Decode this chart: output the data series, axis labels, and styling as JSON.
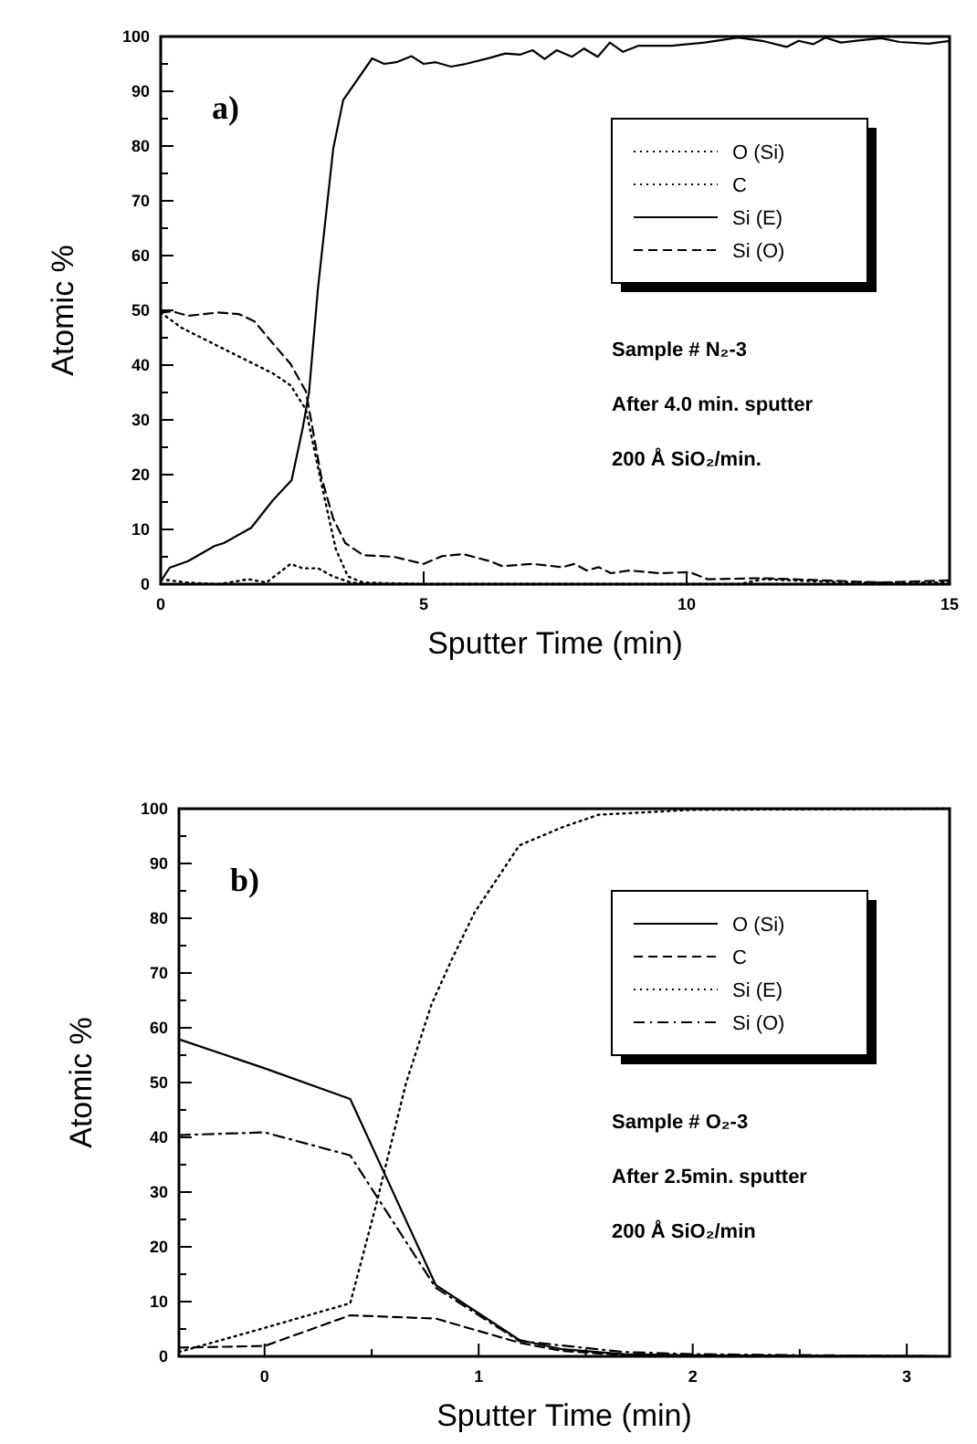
{
  "chart_data": [
    {
      "type": "line",
      "xlabel": "Sputter Time (min)",
      "ylabel": "Atomic %",
      "xlim": [
        0,
        15
      ],
      "ylim": [
        0,
        100
      ],
      "xticks": [
        0,
        5,
        10,
        15
      ],
      "yticks": [
        0,
        {
          "value": 5,
          "label": null
        },
        10,
        {
          "value": 15,
          "label": null
        },
        20,
        {
          "value": 25,
          "label": null
        },
        30,
        {
          "value": 35,
          "label": null
        },
        40,
        {
          "value": 45,
          "label": null
        },
        50,
        {
          "value": 55,
          "label": null
        },
        60,
        {
          "value": 65,
          "label": null
        },
        70,
        {
          "value": 75,
          "label": null
        },
        80,
        {
          "value": 85,
          "label": null
        },
        90,
        {
          "value": 95,
          "label": null
        },
        100
      ],
      "legend": "top right",
      "grid": false,
      "annotations": [
        "a)",
        "Sample # N₂-3",
        "After 4.0 min. sputter",
        "200 Å  SiO₂/min."
      ],
      "series": [
        {
          "name": "O (Si)",
          "color": "#000000",
          "line_style": "dotted",
          "x": [
            0,
            0.4,
            0.98,
            1.67,
            2.13,
            2.47,
            2.76,
            2.93,
            3.1,
            3.33,
            3.56,
            3.85,
            5,
            15
          ],
          "values": [
            49.6,
            46.8,
            44,
            40.7,
            38.5,
            36.3,
            31.9,
            24.1,
            16.4,
            6.4,
            1.4,
            0.3,
            0,
            0
          ]
        },
        {
          "name": "C",
          "color": "#000000",
          "line_style": "dotted",
          "x": [
            0,
            0.5,
            1.1,
            1.67,
            2.01,
            2.47,
            2.7,
            2.99,
            3.28,
            3.62,
            4,
            11,
            11.44,
            13.1,
            15
          ],
          "values": [
            0.9,
            0.3,
            0,
            0.9,
            0.3,
            3.7,
            2.9,
            2.9,
            1.4,
            0.3,
            0,
            0,
            0.9,
            0.3,
            0.3
          ]
        },
        {
          "name": "Si (E)",
          "color": "#000000",
          "line_style": "solid",
          "x": [
            0,
            0.17,
            0.52,
            1.03,
            1.2,
            1.72,
            2.13,
            2.49,
            2.7,
            2.82,
            2.99,
            3.28,
            3.47,
            4.02,
            4.25,
            4.48,
            4.77,
            5,
            5.23,
            5.52,
            5.8,
            6.26,
            6.55,
            6.84,
            7.07,
            7.3,
            7.53,
            7.82,
            8.05,
            8.31,
            8.54,
            8.79,
            9.08,
            9.71,
            10.34,
            10.98,
            11.44,
            11.9,
            12.13,
            12.41,
            12.64,
            12.93,
            13.39,
            13.7,
            14.05,
            14.6,
            15
          ],
          "values": [
            0.5,
            3,
            4.2,
            7,
            7.5,
            10.3,
            15.3,
            19,
            28.5,
            35,
            54,
            79.5,
            88.4,
            96,
            95,
            95.3,
            96.4,
            95,
            95.3,
            94.5,
            95,
            96.1,
            96.9,
            96.7,
            97.5,
            95.9,
            97.5,
            96.3,
            97.8,
            96.3,
            98.9,
            97.2,
            98.3,
            98.3,
            98.9,
            99.8,
            99.2,
            98.1,
            99.2,
            98.6,
            99.8,
            98.9,
            99.4,
            99.7,
            99,
            98.7,
            99.2
          ]
        },
        {
          "name": "Si (O)",
          "color": "#000000",
          "line_style": "dashed",
          "x": [
            0,
            0.23,
            0.52,
            1.09,
            1.49,
            1.78,
            2.13,
            2.47,
            2.76,
            3.05,
            3.28,
            3.51,
            3.85,
            4.43,
            5,
            5.34,
            5.75,
            6.26,
            6.49,
            7.07,
            7.64,
            7.87,
            8.1,
            8.33,
            8.56,
            8.91,
            9.48,
            10.06,
            10.4,
            11.44,
            12.6,
            13.7,
            15
          ],
          "values": [
            49.6,
            49.8,
            49,
            49.6,
            49.3,
            48,
            44,
            40.2,
            35.2,
            19.7,
            12,
            7.5,
            5.3,
            5,
            3.7,
            5.1,
            5.5,
            4.2,
            3.3,
            3.7,
            3.1,
            3.7,
            2.5,
            3.1,
            2,
            2.5,
            2,
            2.2,
            0.9,
            1.1,
            0.7,
            0.3,
            0.7
          ]
        }
      ]
    },
    {
      "type": "line",
      "xlabel": "Sputter Time (min)",
      "ylabel": "Atomic %",
      "xlim": [
        -0.4,
        3.2
      ],
      "ylim": [
        0,
        100
      ],
      "xticks": [
        0,
        {
          "value": 0.5,
          "label": null
        },
        1,
        {
          "value": 1.5,
          "label": null
        },
        2,
        {
          "value": 2.5,
          "label": null
        },
        3
      ],
      "yticks": [
        0,
        {
          "value": 5,
          "label": null
        },
        10,
        {
          "value": 15,
          "label": null
        },
        20,
        {
          "value": 25,
          "label": null
        },
        30,
        {
          "value": 35,
          "label": null
        },
        40,
        {
          "value": 45,
          "label": null
        },
        50,
        {
          "value": 55,
          "label": null
        },
        60,
        {
          "value": 65,
          "label": null
        },
        70,
        {
          "value": 75,
          "label": null
        },
        80,
        {
          "value": 85,
          "label": null
        },
        90,
        {
          "value": 95,
          "label": null
        },
        100
      ],
      "legend": "top right",
      "grid": false,
      "annotations": [
        "b)",
        "Sample # O₂-3",
        "After 2.5min. sputter",
        "200 Å  SiO₂/min"
      ],
      "series": [
        {
          "name": "O (Si)",
          "color": "#000000",
          "line_style": "solid",
          "x": [
            -0.4,
            0,
            0.4,
            0.8,
            1.19,
            1.39,
            1.68,
            2,
            2.54,
            3.2
          ],
          "values": [
            57.9,
            52.6,
            47,
            13,
            3,
            1.3,
            0.4,
            0.2,
            0.1,
            0
          ]
        },
        {
          "name": "C",
          "color": "#000000",
          "line_style": "dashed",
          "x": [
            -0.4,
            0,
            0.4,
            0.8,
            1.19,
            1.39,
            1.68,
            3.2
          ],
          "values": [
            1.6,
            1.9,
            7.5,
            6.9,
            2.5,
            1,
            0.2,
            0
          ]
        },
        {
          "name": "Si (E)",
          "color": "#000000",
          "line_style": "dotted",
          "x": [
            -0.4,
            0,
            0.4,
            0.52,
            0.66,
            0.78,
            0.87,
            0.98,
            1.19,
            1.39,
            1.56,
            2,
            3.2
          ],
          "values": [
            0.8,
            5.2,
            9.7,
            27.5,
            49.8,
            64.3,
            72.1,
            81,
            93.3,
            96.6,
            98.9,
            99.8,
            100
          ]
        },
        {
          "name": "Si (O)",
          "color": "#000000",
          "line_style": "dashdot",
          "x": [
            -0.4,
            0,
            0.4,
            0.8,
            1.19,
            1.68,
            2,
            3.2
          ],
          "values": [
            40.4,
            40.9,
            36.7,
            12.5,
            2.8,
            0.8,
            0.4,
            0
          ]
        }
      ]
    }
  ]
}
